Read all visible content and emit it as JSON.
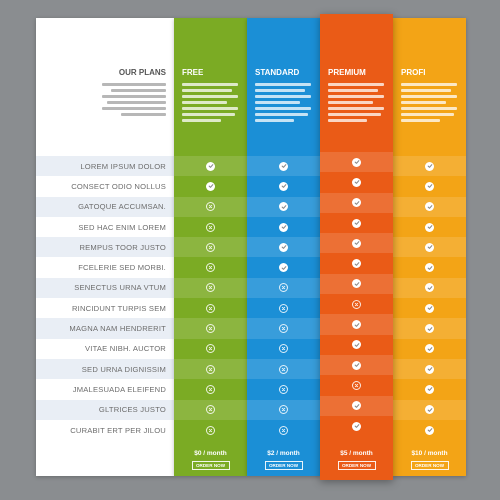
{
  "header": {
    "title": "OUR PLANS"
  },
  "features": [
    "LOREM IPSUM DOLOR",
    "CONSECT ODIO NOLLUS",
    "GATOQUE ACCUMSAN.",
    "SED HAC ENIM LOREM",
    "REMPUS TOOR JUSTO",
    "FCELERIE SED MORBI.",
    "SENECTUS URNA VTUM",
    "RINCIDUNT TURPIS SEM",
    "MAGNA NAM HENDRERIT",
    "VITAE NIBH. AUCTOR",
    "SED URNA DIGNISSIM",
    "JMALESUADA ELEIFEND",
    "GLTRICES JUSTO",
    "CURABIT ERT PER JILOU"
  ],
  "plans": [
    {
      "name": "FREE",
      "price": "$0 / month",
      "button": "ORDER NOW",
      "color": "#7bab24",
      "included": [
        true,
        true,
        false,
        false,
        false,
        false,
        false,
        false,
        false,
        false,
        false,
        false,
        false,
        false
      ]
    },
    {
      "name": "STANDARD",
      "price": "$2 / month",
      "button": "ORDER NOW",
      "color": "#1b8fd6",
      "included": [
        true,
        true,
        true,
        true,
        true,
        true,
        false,
        false,
        false,
        false,
        false,
        false,
        false,
        false
      ]
    },
    {
      "name": "PREMIUM",
      "price": "$5 / month",
      "button": "ORDER NOW",
      "color": "#ea5b17",
      "included": [
        true,
        true,
        true,
        true,
        true,
        true,
        true,
        false,
        true,
        true,
        true,
        false,
        true,
        true
      ]
    },
    {
      "name": "PROFI",
      "price": "$10 / month",
      "button": "ORDER NOW",
      "color": "#f3a416",
      "included": [
        true,
        true,
        true,
        true,
        true,
        true,
        true,
        true,
        true,
        true,
        true,
        true,
        true,
        true
      ]
    }
  ],
  "icons": {
    "included": "check-icon",
    "excluded": "cross-circle-icon"
  }
}
